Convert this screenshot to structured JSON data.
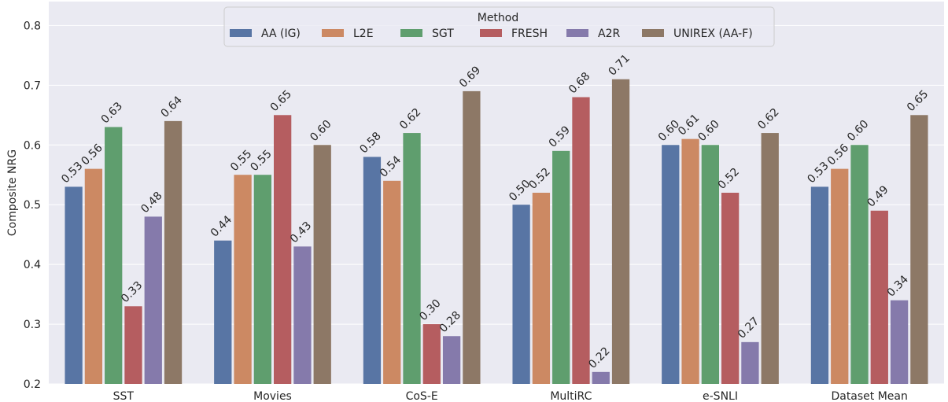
{
  "chart_data": {
    "type": "bar",
    "ylabel": "Composite NRG",
    "ylim": [
      0.2,
      0.84
    ],
    "yticks": [
      0.2,
      0.3,
      0.4,
      0.5,
      0.6,
      0.7,
      0.8
    ],
    "ytick_labels": [
      "0.2",
      "0.3",
      "0.4",
      "0.5",
      "0.6",
      "0.7",
      "0.8"
    ],
    "grid": true,
    "categories": [
      "SST",
      "Movies",
      "CoS-E",
      "MultiRC",
      "e-SNLI",
      "Dataset Mean"
    ],
    "legend": {
      "title": "Method",
      "placement": "top-center"
    },
    "series": [
      {
        "name": "AA (IG)",
        "color": "#5875a4",
        "values": [
          0.53,
          0.44,
          0.58,
          0.5,
          0.6,
          0.53
        ],
        "labels": [
          "0.53",
          "0.44",
          "0.58",
          "0.50",
          "0.60",
          "0.53"
        ]
      },
      {
        "name": "L2E",
        "color": "#cc8963",
        "values": [
          0.56,
          0.55,
          0.54,
          0.52,
          0.61,
          0.56
        ],
        "labels": [
          "0.56",
          "0.55",
          "0.54",
          "0.52",
          "0.61",
          "0.56"
        ]
      },
      {
        "name": "SGT",
        "color": "#5f9e6e",
        "values": [
          0.63,
          0.55,
          0.62,
          0.59,
          0.6,
          0.6
        ],
        "labels": [
          "0.63",
          "0.55",
          "0.62",
          "0.59",
          "0.60",
          "0.60"
        ]
      },
      {
        "name": "FRESH",
        "color": "#b55d60",
        "values": [
          0.33,
          0.65,
          0.3,
          0.68,
          0.52,
          0.49
        ],
        "labels": [
          "0.33",
          "0.65",
          "0.30",
          "0.68",
          "0.52",
          "0.49"
        ]
      },
      {
        "name": "A2R",
        "color": "#857aab",
        "values": [
          0.48,
          0.43,
          0.28,
          0.22,
          0.27,
          0.34
        ],
        "labels": [
          "0.48",
          "0.43",
          "0.28",
          "0.22",
          "0.27",
          "0.34"
        ]
      },
      {
        "name": "UNIREX (AA-F)",
        "color": "#8d7866",
        "values": [
          0.64,
          0.6,
          0.69,
          0.71,
          0.62,
          0.65
        ],
        "labels": [
          "0.64",
          "0.60",
          "0.69",
          "0.71",
          "0.62",
          "0.65"
        ]
      }
    ]
  },
  "colors": {
    "plot_background": "#eaeaf2",
    "grid": "#ffffff"
  }
}
